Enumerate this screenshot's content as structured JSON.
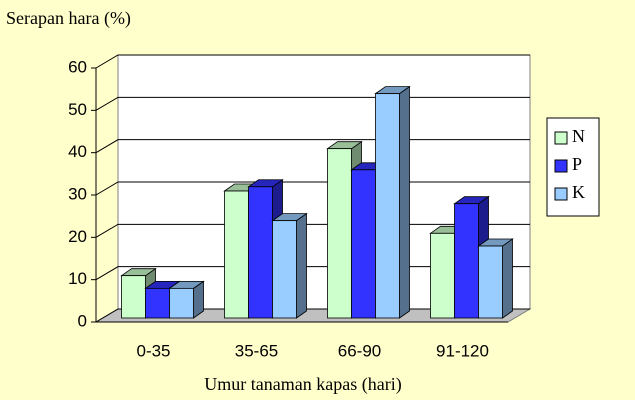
{
  "chart_data": {
    "type": "bar3d",
    "title": "Serapan hara (%)",
    "x_label": "Umur tanaman kapas (hari)",
    "categories": [
      "0-35",
      "35-65",
      "66-90",
      "91-120"
    ],
    "series": [
      {
        "name": "N",
        "color": "#CCFFCC",
        "values": [
          10,
          30,
          40,
          20
        ]
      },
      {
        "name": "P",
        "color": "#3333FF",
        "values": [
          7,
          31,
          35,
          27
        ]
      },
      {
        "name": "K",
        "color": "#99CCFF",
        "values": [
          7,
          23,
          53,
          17
        ]
      }
    ],
    "ylim": [
      0,
      60
    ],
    "yticks": [
      0,
      10,
      20,
      30,
      40,
      50,
      60
    ],
    "grid": true,
    "legend": "right"
  }
}
